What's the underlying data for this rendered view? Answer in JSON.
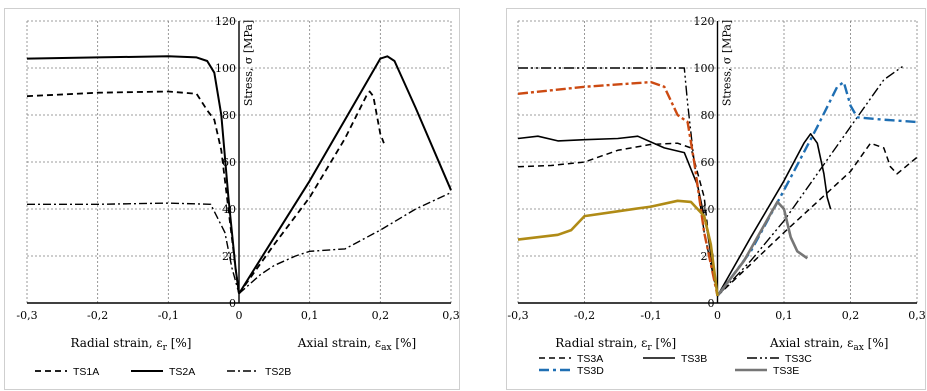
{
  "chart_data": [
    {
      "type": "line",
      "ylabel": "Stress, σ [MPa]",
      "xlabel_left": "Radial strain, ε_r [%]",
      "xlabel_right": "Axial strain, ε_ax [%]",
      "xlim": [
        -0.3,
        0.3
      ],
      "ylim": [
        0,
        120
      ],
      "x_ticks": [
        "-0,3",
        "-0,2",
        "-0,1",
        "0",
        "0,1",
        "0,2",
        "0,3"
      ],
      "y_ticks": [
        "0",
        "20",
        "40",
        "60",
        "80",
        "100",
        "120"
      ],
      "grid": true,
      "legend_position": "bottom",
      "series": [
        {
          "name": "TS1A",
          "color": "#000000",
          "dash": "6 4",
          "width": 1.8,
          "segments": [
            [
              [
                -0.3,
                88
              ],
              [
                -0.2,
                89.5
              ],
              [
                -0.1,
                90
              ],
              [
                -0.06,
                89
              ],
              [
                -0.045,
                82
              ],
              [
                -0.035,
                78
              ],
              [
                -0.025,
                65
              ],
              [
                -0.015,
                40
              ],
              [
                -0.005,
                15
              ],
              [
                0,
                4
              ]
            ],
            [
              [
                0,
                4
              ],
              [
                0.05,
                25
              ],
              [
                0.1,
                45
              ],
              [
                0.15,
                70
              ],
              [
                0.18,
                88
              ],
              [
                0.185,
                90
              ],
              [
                0.19,
                88
              ],
              [
                0.2,
                72
              ],
              [
                0.205,
                68
              ]
            ]
          ]
        },
        {
          "name": "TS2A",
          "color": "#000000",
          "dash": "",
          "width": 2.0,
          "segments": [
            [
              [
                -0.3,
                104
              ],
              [
                -0.2,
                104.5
              ],
              [
                -0.1,
                105
              ],
              [
                -0.06,
                104.5
              ],
              [
                -0.045,
                103
              ],
              [
                -0.035,
                98
              ],
              [
                -0.025,
                80
              ],
              [
                -0.015,
                45
              ],
              [
                -0.005,
                15
              ],
              [
                0,
                4
              ]
            ],
            [
              [
                0,
                4
              ],
              [
                0.05,
                28
              ],
              [
                0.1,
                52
              ],
              [
                0.15,
                78
              ],
              [
                0.2,
                104
              ],
              [
                0.21,
                105
              ],
              [
                0.22,
                103
              ],
              [
                0.25,
                83
              ],
              [
                0.3,
                48
              ]
            ]
          ]
        },
        {
          "name": "TS2B",
          "color": "#000000",
          "dash": "8 3 2 3",
          "width": 1.4,
          "segments": [
            [
              [
                -0.3,
                42
              ],
              [
                -0.2,
                42
              ],
              [
                -0.1,
                42.5
              ],
              [
                -0.04,
                42
              ],
              [
                -0.02,
                30
              ],
              [
                -0.01,
                15
              ],
              [
                0,
                4
              ]
            ],
            [
              [
                0,
                4
              ],
              [
                0.03,
                12
              ],
              [
                0.05,
                16
              ],
              [
                0.08,
                20
              ],
              [
                0.1,
                22
              ],
              [
                0.15,
                23
              ],
              [
                0.2,
                31
              ],
              [
                0.25,
                40
              ],
              [
                0.3,
                47
              ]
            ]
          ]
        }
      ]
    },
    {
      "type": "line",
      "ylabel": "Stress, σ [MPa]",
      "xlabel_left": "Radial strain, ε_r [%]",
      "xlabel_right": "Axial strain, ε_ax [%]",
      "xlim": [
        -0.3,
        0.3
      ],
      "ylim": [
        0,
        120
      ],
      "x_ticks": [
        "-0,3",
        "-0,2",
        "-0,1",
        "0",
        "0,1",
        "0,2",
        "0,3"
      ],
      "y_ticks": [
        "0",
        "20",
        "40",
        "60",
        "80",
        "100",
        "120"
      ],
      "grid": true,
      "legend_position": "bottom",
      "series": [
        {
          "name": "TS3A",
          "color": "#000000",
          "dash": "6 4",
          "width": 1.5,
          "segments": [
            [
              [
                -0.3,
                58
              ],
              [
                -0.25,
                58.5
              ],
              [
                -0.2,
                60
              ],
              [
                -0.15,
                65
              ],
              [
                -0.1,
                67.5
              ],
              [
                -0.06,
                68
              ],
              [
                -0.04,
                66
              ],
              [
                -0.02,
                45
              ],
              [
                -0.01,
                20
              ],
              [
                0,
                3
              ]
            ],
            [
              [
                0,
                3
              ],
              [
                0.1,
                30
              ],
              [
                0.2,
                56
              ],
              [
                0.23,
                68
              ],
              [
                0.25,
                66
              ],
              [
                0.26,
                58
              ],
              [
                0.27,
                55
              ],
              [
                0.3,
                62
              ]
            ]
          ]
        },
        {
          "name": "TS3B",
          "color": "#000000",
          "dash": "",
          "width": 1.6,
          "segments": [
            [
              [
                -0.3,
                70
              ],
              [
                -0.27,
                71
              ],
              [
                -0.24,
                69
              ],
              [
                -0.2,
                69.5
              ],
              [
                -0.15,
                70
              ],
              [
                -0.12,
                71
              ],
              [
                -0.08,
                66
              ],
              [
                -0.05,
                64
              ],
              [
                -0.03,
                50
              ],
              [
                -0.015,
                30
              ],
              [
                0,
                3
              ]
            ],
            [
              [
                0,
                3
              ],
              [
                0.05,
                28
              ],
              [
                0.1,
                52
              ],
              [
                0.13,
                68
              ],
              [
                0.14,
                72
              ],
              [
                0.15,
                68
              ],
              [
                0.16,
                55
              ],
              [
                0.165,
                45
              ],
              [
                0.17,
                40
              ]
            ]
          ]
        },
        {
          "name": "TS3C",
          "color": "#000000",
          "dash": "10 3 2 3 2 3",
          "width": 1.4,
          "segments": [
            [
              [
                -0.3,
                100
              ],
              [
                -0.2,
                100
              ],
              [
                -0.1,
                100
              ],
              [
                -0.05,
                100
              ],
              [
                -0.045,
                85
              ],
              [
                -0.035,
                60
              ],
              [
                -0.02,
                30
              ],
              [
                0,
                3
              ]
            ],
            [
              [
                0,
                3
              ],
              [
                0.05,
                18
              ],
              [
                0.1,
                35
              ],
              [
                0.15,
                55
              ],
              [
                0.2,
                75
              ],
              [
                0.25,
                95
              ],
              [
                0.28,
                101
              ]
            ]
          ]
        },
        {
          "name": "TS3D",
          "color": "#1f6fb3",
          "dash": "10 4 3 4",
          "width": 2.4,
          "segments": [
            [],
            [
              [
                0,
                3
              ],
              [
                0.05,
                22
              ],
              [
                0.1,
                48
              ],
              [
                0.15,
                75
              ],
              [
                0.18,
                92
              ],
              [
                0.19,
                94
              ],
              [
                0.2,
                84
              ],
              [
                0.21,
                79
              ],
              [
                0.25,
                78
              ],
              [
                0.3,
                77
              ]
            ]
          ]
        },
        {
          "name": "TS3E",
          "color": "#767676",
          "dash": "",
          "width": 2.6,
          "segments": [
            [],
            [
              [
                0,
                3
              ],
              [
                0.04,
                18
              ],
              [
                0.07,
                33
              ],
              [
                0.09,
                43
              ],
              [
                0.1,
                40
              ],
              [
                0.11,
                28
              ],
              [
                0.12,
                22
              ],
              [
                0.135,
                19
              ]
            ]
          ]
        },
        {
          "name": "",
          "color": "#cc4a12",
          "dash": "10 3 3 3",
          "width": 2.4,
          "segments": [
            [
              [
                -0.3,
                89
              ],
              [
                -0.2,
                92
              ],
              [
                -0.1,
                94
              ],
              [
                -0.08,
                92
              ],
              [
                -0.06,
                80
              ],
              [
                -0.045,
                77
              ],
              [
                -0.035,
                60
              ],
              [
                -0.02,
                30
              ],
              [
                0,
                3
              ]
            ]
          ]
        },
        {
          "name": "",
          "color": "#b08b16",
          "dash": "",
          "width": 2.6,
          "segments": [
            [
              [
                -0.3,
                27
              ],
              [
                -0.24,
                29
              ],
              [
                -0.22,
                31
              ],
              [
                -0.2,
                37
              ],
              [
                -0.15,
                39
              ],
              [
                -0.1,
                41
              ],
              [
                -0.06,
                43.5
              ],
              [
                -0.04,
                43
              ],
              [
                -0.02,
                37
              ],
              [
                -0.01,
                25
              ],
              [
                0,
                3
              ]
            ]
          ]
        }
      ]
    }
  ]
}
